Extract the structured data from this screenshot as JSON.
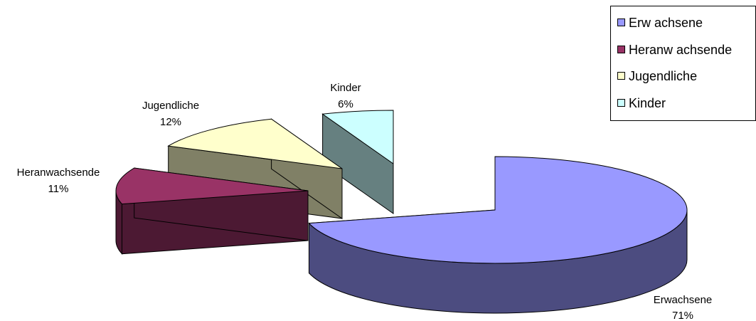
{
  "chart_data": {
    "type": "pie",
    "style": "3d-exploded",
    "title": "",
    "categories": [
      "Erwachsene",
      "Heranwachsende",
      "Jugendliche",
      "Kinder"
    ],
    "values": [
      71,
      11,
      12,
      6
    ],
    "unit": "%",
    "data_labels": [
      {
        "name": "Erwachsene",
        "value": "71%"
      },
      {
        "name": "Heranwachsende",
        "value": "11%"
      },
      {
        "name": "Jugendliche",
        "value": "12%"
      },
      {
        "name": "Kinder",
        "value": "6%"
      }
    ],
    "legend": {
      "position": "top-right",
      "entries": [
        "Erw achsene",
        "Heranw achsende",
        "Jugendliche",
        "Kinder"
      ]
    },
    "colors": {
      "Erwachsene": {
        "top": "#9999ff",
        "side": "#4c4c80"
      },
      "Heranwachsende": {
        "top": "#993366",
        "side": "#4c1933"
      },
      "Jugendliche": {
        "top": "#ffffcc",
        "side": "#808066"
      },
      "Kinder": {
        "top": "#ccffff",
        "side": "#668080"
      }
    }
  }
}
